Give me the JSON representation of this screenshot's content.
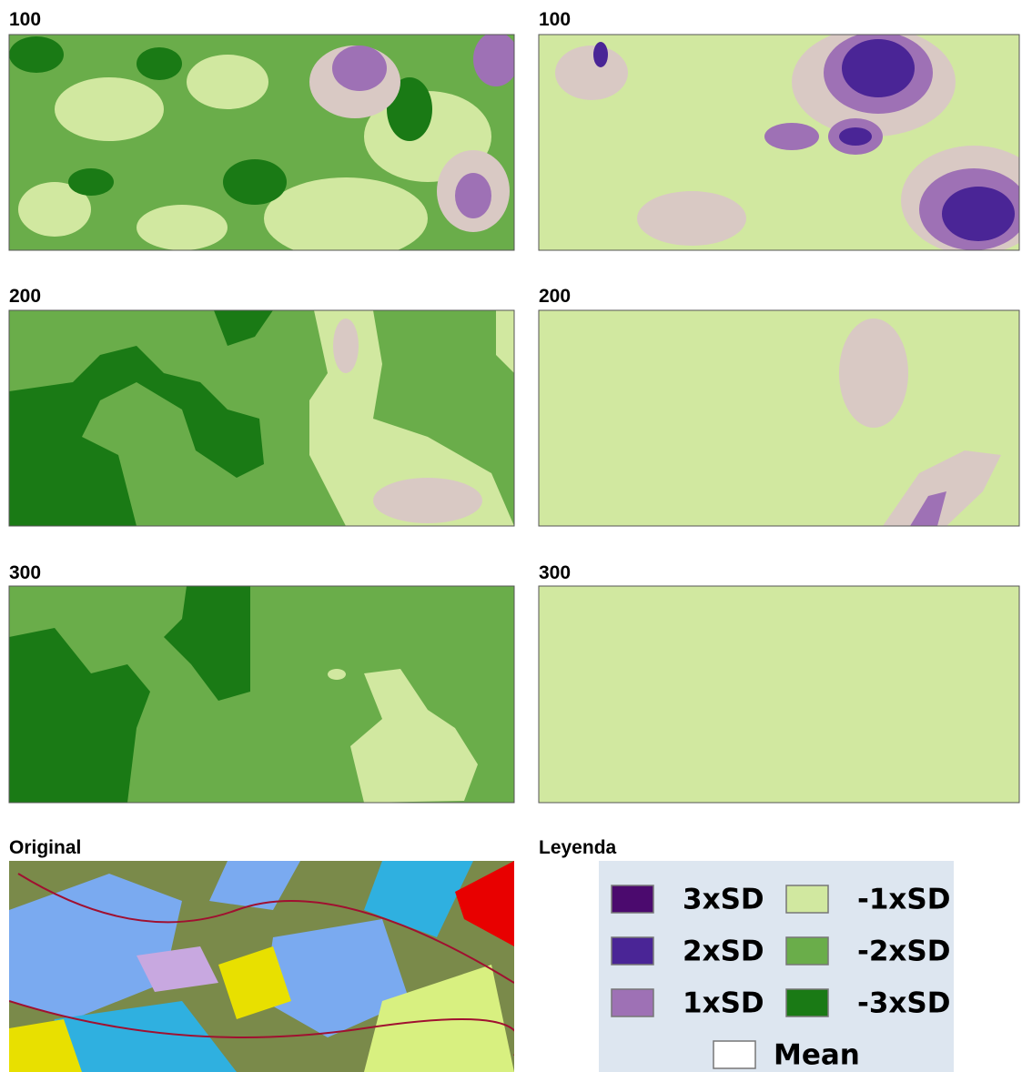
{
  "panels": [
    {
      "label": "100"
    },
    {
      "label": "100"
    },
    {
      "label": "200"
    },
    {
      "label": "200"
    },
    {
      "label": "300"
    },
    {
      "label": "300"
    }
  ],
  "original": {
    "label": "Original"
  },
  "legend": {
    "title": "Leyenda",
    "items": [
      {
        "label": "3xSD",
        "color": "#4b0a6e"
      },
      {
        "label": "2xSD",
        "color": "#4a2596"
      },
      {
        "label": "1xSD",
        "color": "#9e71b5"
      },
      {
        "label": "-1xSD",
        "color": "#d1e8a0"
      },
      {
        "label": "-2xSD",
        "color": "#6aad4a"
      },
      {
        "label": "-3xSD",
        "color": "#1a7a15"
      },
      {
        "label": "Mean",
        "color": "#ffffff"
      }
    ]
  }
}
